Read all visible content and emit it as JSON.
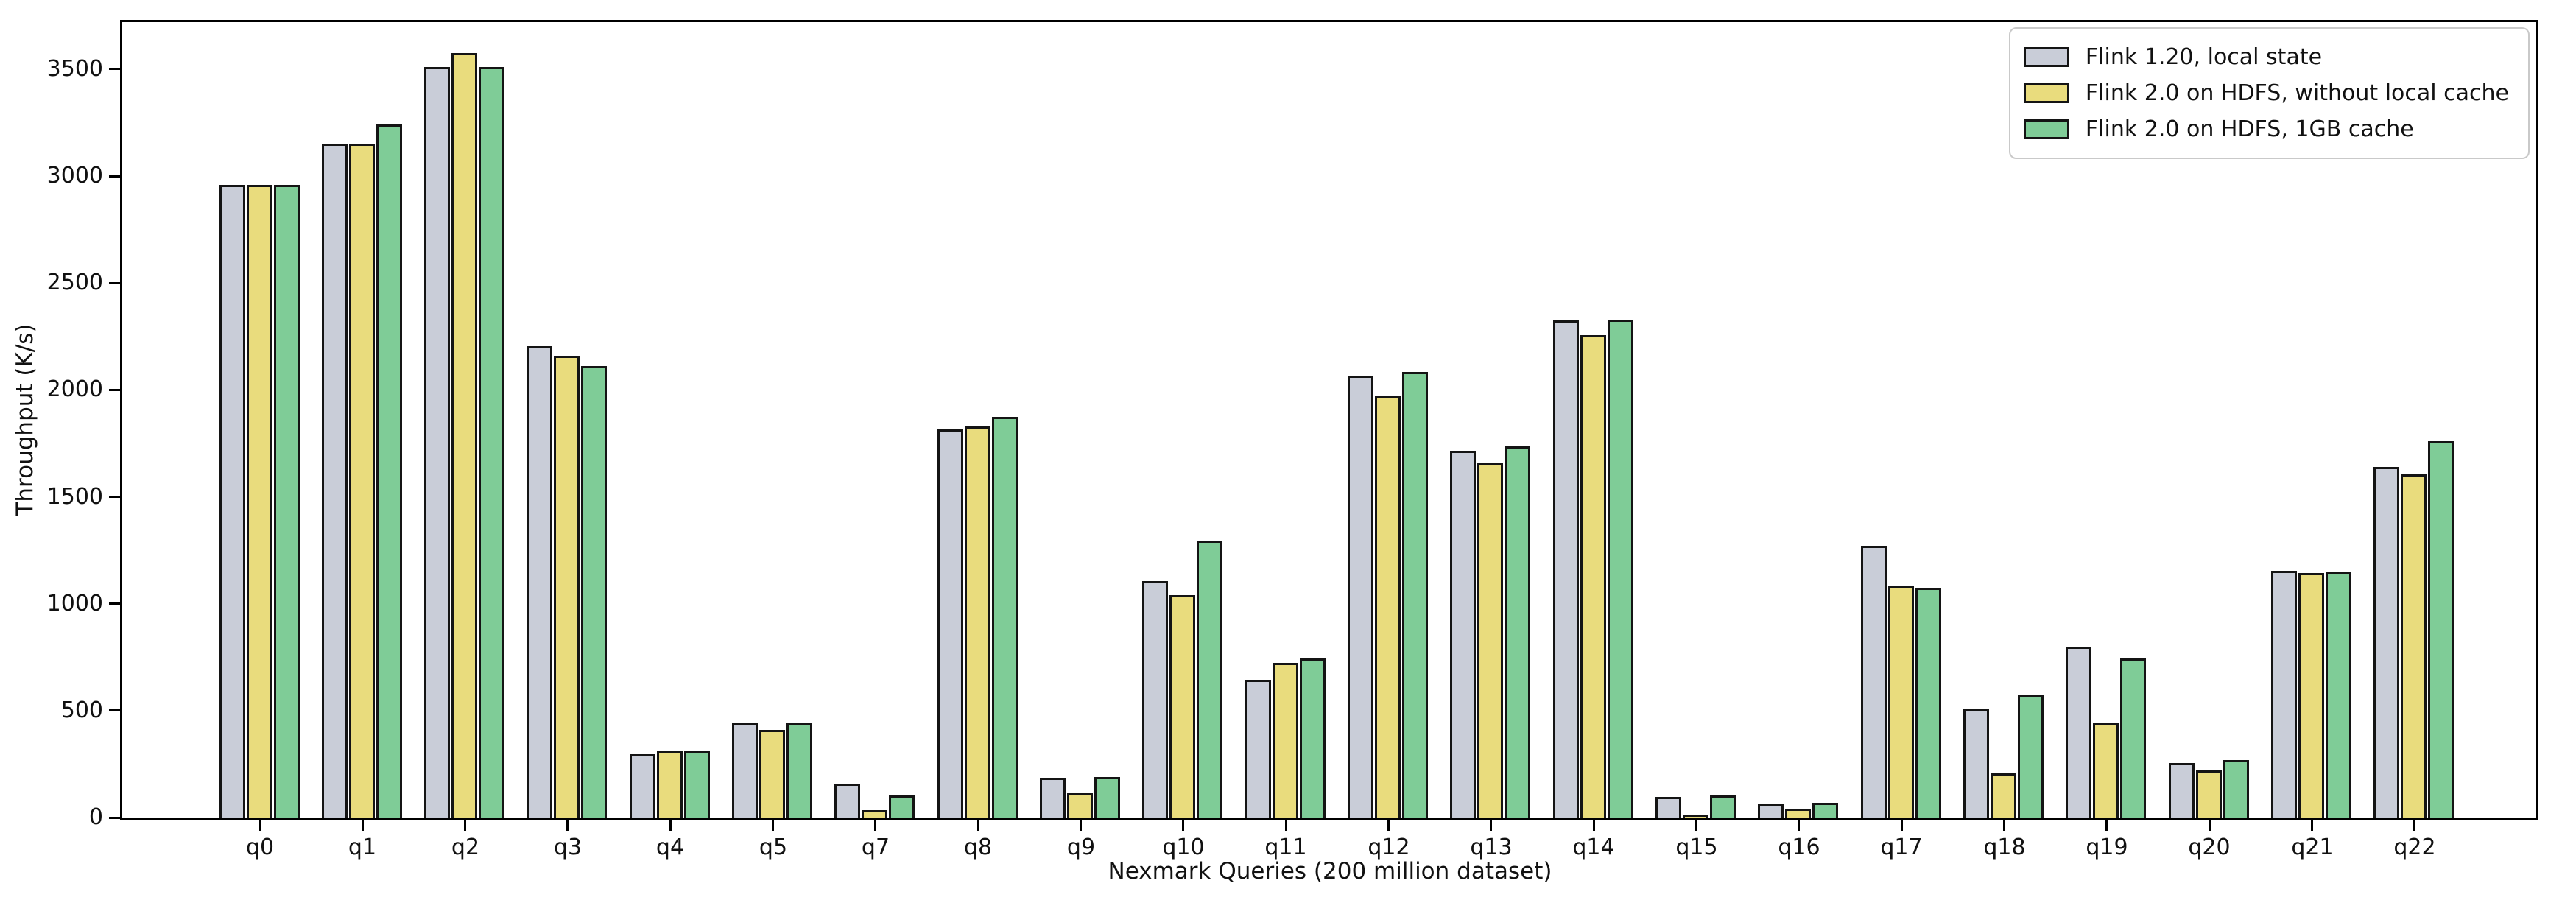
{
  "figure": {
    "background": "#ffffff"
  },
  "chart_data": {
    "type": "bar",
    "title": "",
    "xlabel": "Nexmark Queries (200 million dataset)",
    "ylabel": "Throughput (K/s)",
    "ylim": [
      0,
      3720
    ],
    "yticks": [
      0,
      500,
      1000,
      1500,
      2000,
      2500,
      3000,
      3500
    ],
    "grid": false,
    "legend_position": "upper right",
    "bar_edge_color": "#141414",
    "categories": [
      "q0",
      "q1",
      "q2",
      "q3",
      "q4",
      "q5",
      "q7",
      "q8",
      "q9",
      "q10",
      "q11",
      "q12",
      "q13",
      "q14",
      "q15",
      "q16",
      "q17",
      "q18",
      "q19",
      "q20",
      "q21",
      "q22"
    ],
    "series": [
      {
        "name": "Flink 1.20, local state",
        "color": "#c9cdd8",
        "values": [
          2960,
          3150,
          3510,
          2205,
          295,
          445,
          160,
          1815,
          185,
          1105,
          645,
          2065,
          1715,
          2325,
          95,
          65,
          1270,
          505,
          800,
          255,
          1155,
          1640
        ]
      },
      {
        "name": "Flink 2.0 on HDFS, without local cache",
        "color": "#e9dc7d",
        "values": [
          2960,
          3150,
          3575,
          2160,
          310,
          410,
          35,
          1830,
          115,
          1040,
          725,
          1975,
          1660,
          2255,
          15,
          40,
          1080,
          205,
          440,
          220,
          1145,
          1605
        ]
      },
      {
        "name": "Flink 2.0 on HDFS, 1GB cache",
        "color": "#7fcc97",
        "values": [
          2960,
          3240,
          3510,
          2110,
          310,
          445,
          105,
          1875,
          190,
          1295,
          745,
          2085,
          1735,
          2330,
          105,
          70,
          1075,
          575,
          745,
          270,
          1150,
          1760
        ]
      }
    ]
  }
}
